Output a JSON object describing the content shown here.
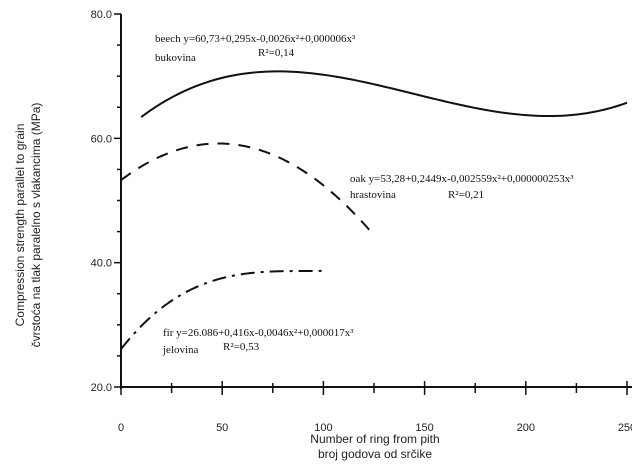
{
  "chart_data": {
    "type": "line",
    "title": "",
    "xlabel": [
      "Number of ring from pith",
      "broj godova od srčike"
    ],
    "ylabel": [
      "Compression strength parallel to grain",
      "čvrstoća na tlak paralelno s vlakancima (MPa)"
    ],
    "xlim": [
      0,
      250
    ],
    "ylim": [
      20,
      80
    ],
    "xticks": [
      "0",
      "50",
      "100",
      "150",
      "200",
      "250"
    ],
    "yticks": [
      "20.0",
      "40.0",
      "60.0",
      "80.0"
    ],
    "grid": false,
    "series": [
      {
        "name": "beech",
        "style": "solid",
        "x_range": [
          10,
          250
        ],
        "coefficients": [
          60.73,
          0.295,
          -0.0026,
          6e-06
        ],
        "equation": "beech y=60,73+0,295x-0,0026x²+0,000006x³",
        "label_local": "bukovina",
        "r2": "R²=0,14"
      },
      {
        "name": "oak",
        "style": "dashed",
        "x_range": [
          0,
          125
        ],
        "coefficients": [
          53.28,
          0.2449,
          -0.002559,
          2.53e-07
        ],
        "equation": "oak y=53,28+0,2449x-0,002559x²+0,000000253x³",
        "label_local": "hrastovina",
        "r2": "R²=0,21"
      },
      {
        "name": "fir",
        "style": "dash-dot",
        "x_range": [
          0,
          100
        ],
        "coefficients": [
          26.086,
          0.416,
          -0.0046,
          1.7e-05
        ],
        "equation": "fir y=26.086+0,416x-0,0046x²+0,000017x³",
        "label_local": "jelovina",
        "r2": "R²=0,53"
      }
    ]
  }
}
